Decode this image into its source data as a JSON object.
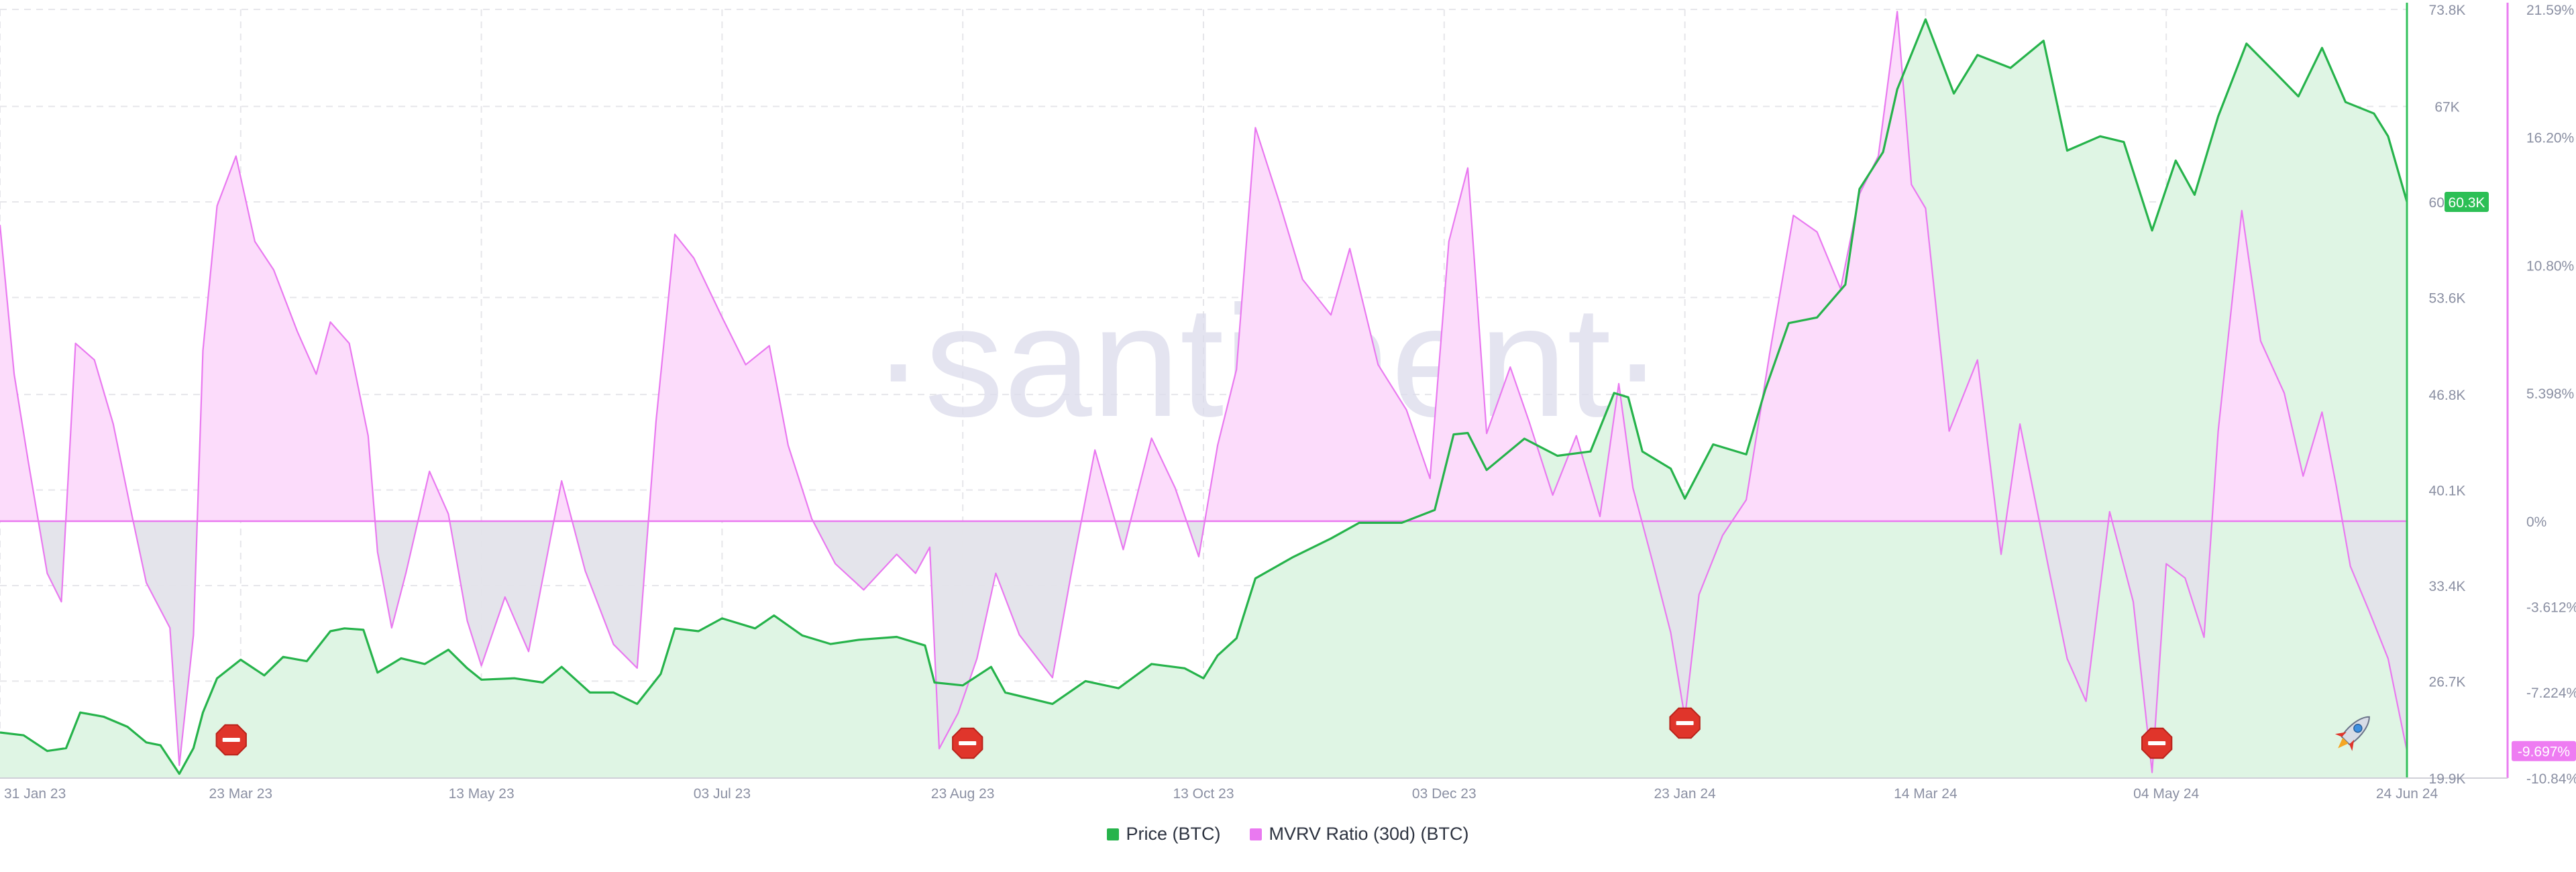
{
  "watermark": "·santiment·",
  "chart_data": {
    "type": "line",
    "x_range": [
      "2023-01-31",
      "2024-06-24"
    ],
    "x_tick_labels": [
      "31 Jan 23",
      "23 Mar 23",
      "13 May 23",
      "03 Jul 23",
      "23 Aug 23",
      "13 Oct 23",
      "03 Dec 23",
      "23 Jan 24",
      "14 Mar 24",
      "04 May 24",
      "24 Jun 24"
    ],
    "left_axis": {
      "name": "Price (BTC)",
      "ylim": [
        19900,
        73800
      ],
      "tick_values": [
        19900,
        26700,
        33400,
        40100,
        46800,
        53600,
        60300,
        67000,
        73800
      ],
      "tick_labels": [
        "19.9K",
        "26.7K",
        "33.4K",
        "40.1K",
        "46.8K",
        "53.6K",
        "60.3K",
        "67K",
        "73.8K"
      ],
      "last_value_label": "60.3K",
      "color": "#26b34b"
    },
    "right_axis": {
      "name": "MVRV Ratio (30d) (BTC)",
      "ylim": [
        -10.84,
        21.59
      ],
      "tick_values": [
        -10.84,
        -7.224,
        -3.612,
        0,
        5.398,
        10.8,
        16.2,
        21.59
      ],
      "tick_labels": [
        "-10.84%",
        "-7.224%",
        "-3.612%",
        "0%",
        "5.398%",
        "10.80%",
        "16.20%",
        "21.59%"
      ],
      "last_value_label": "-9.697%",
      "color": "#e979f0"
    },
    "grid": true,
    "legend_position": "bottom-center",
    "series": [
      {
        "name": "Price (BTC)",
        "axis": "left",
        "type": "area",
        "color": "#26b34b",
        "fill": "#dff5e4",
        "points": [
          [
            "2023-01-31",
            23100
          ],
          [
            "2023-02-05",
            22900
          ],
          [
            "2023-02-10",
            21800
          ],
          [
            "2023-02-14",
            22000
          ],
          [
            "2023-02-17",
            24500
          ],
          [
            "2023-02-22",
            24200
          ],
          [
            "2023-02-27",
            23500
          ],
          [
            "2023-03-03",
            22400
          ],
          [
            "2023-03-06",
            22200
          ],
          [
            "2023-03-10",
            20200
          ],
          [
            "2023-03-13",
            22000
          ],
          [
            "2023-03-15",
            24500
          ],
          [
            "2023-03-18",
            26900
          ],
          [
            "2023-03-23",
            28200
          ],
          [
            "2023-03-28",
            27100
          ],
          [
            "2023-04-01",
            28400
          ],
          [
            "2023-04-06",
            28100
          ],
          [
            "2023-04-11",
            30200
          ],
          [
            "2023-04-14",
            30400
          ],
          [
            "2023-04-18",
            30300
          ],
          [
            "2023-04-21",
            27300
          ],
          [
            "2023-04-26",
            28300
          ],
          [
            "2023-05-01",
            27900
          ],
          [
            "2023-05-06",
            28900
          ],
          [
            "2023-05-10",
            27600
          ],
          [
            "2023-05-13",
            26800
          ],
          [
            "2023-05-20",
            26900
          ],
          [
            "2023-05-26",
            26600
          ],
          [
            "2023-05-30",
            27700
          ],
          [
            "2023-06-05",
            25900
          ],
          [
            "2023-06-10",
            25900
          ],
          [
            "2023-06-15",
            25100
          ],
          [
            "2023-06-20",
            27200
          ],
          [
            "2023-06-23",
            30400
          ],
          [
            "2023-06-28",
            30200
          ],
          [
            "2023-07-03",
            31100
          ],
          [
            "2023-07-10",
            30400
          ],
          [
            "2023-07-14",
            31300
          ],
          [
            "2023-07-20",
            29900
          ],
          [
            "2023-07-26",
            29300
          ],
          [
            "2023-08-01",
            29600
          ],
          [
            "2023-08-09",
            29800
          ],
          [
            "2023-08-15",
            29200
          ],
          [
            "2023-08-17",
            26600
          ],
          [
            "2023-08-23",
            26400
          ],
          [
            "2023-08-29",
            27700
          ],
          [
            "2023-09-01",
            25900
          ],
          [
            "2023-09-11",
            25100
          ],
          [
            "2023-09-18",
            26700
          ],
          [
            "2023-09-25",
            26200
          ],
          [
            "2023-10-02",
            27900
          ],
          [
            "2023-10-09",
            27600
          ],
          [
            "2023-10-13",
            26900
          ],
          [
            "2023-10-16",
            28500
          ],
          [
            "2023-10-20",
            29700
          ],
          [
            "2023-10-24",
            33900
          ],
          [
            "2023-11-01",
            35400
          ],
          [
            "2023-11-09",
            36700
          ],
          [
            "2023-11-15",
            37800
          ],
          [
            "2023-11-24",
            37800
          ],
          [
            "2023-12-01",
            38700
          ],
          [
            "2023-12-05",
            44000
          ],
          [
            "2023-12-08",
            44100
          ],
          [
            "2023-12-12",
            41500
          ],
          [
            "2023-12-20",
            43700
          ],
          [
            "2023-12-27",
            42500
          ],
          [
            "2024-01-03",
            42800
          ],
          [
            "2024-01-08",
            46900
          ],
          [
            "2024-01-11",
            46600
          ],
          [
            "2024-01-14",
            42800
          ],
          [
            "2024-01-20",
            41600
          ],
          [
            "2024-01-23",
            39500
          ],
          [
            "2024-01-29",
            43300
          ],
          [
            "2024-02-05",
            42600
          ],
          [
            "2024-02-09",
            47100
          ],
          [
            "2024-02-14",
            51800
          ],
          [
            "2024-02-20",
            52200
          ],
          [
            "2024-02-26",
            54500
          ],
          [
            "2024-02-29",
            61200
          ],
          [
            "2024-03-05",
            63800
          ],
          [
            "2024-03-08",
            68200
          ],
          [
            "2024-03-14",
            73100
          ],
          [
            "2024-03-20",
            67900
          ],
          [
            "2024-03-25",
            70600
          ],
          [
            "2024-04-01",
            69700
          ],
          [
            "2024-04-08",
            71600
          ],
          [
            "2024-04-13",
            63900
          ],
          [
            "2024-04-20",
            64900
          ],
          [
            "2024-04-25",
            64500
          ],
          [
            "2024-05-01",
            58300
          ],
          [
            "2024-05-06",
            63200
          ],
          [
            "2024-05-10",
            60800
          ],
          [
            "2024-05-15",
            66300
          ],
          [
            "2024-05-21",
            71400
          ],
          [
            "2024-05-27",
            69400
          ],
          [
            "2024-06-01",
            67700
          ],
          [
            "2024-06-06",
            71100
          ],
          [
            "2024-06-11",
            67300
          ],
          [
            "2024-06-17",
            66500
          ],
          [
            "2024-06-20",
            64900
          ],
          [
            "2024-06-24",
            60300
          ]
        ]
      },
      {
        "name": "MVRV Ratio (30d) (BTC)",
        "axis": "right",
        "type": "area",
        "color": "#e979f0",
        "fill_positive": "#fcdcfb",
        "fill_negative": "#e3e3ea",
        "points": [
          [
            "2023-01-31",
            12.5
          ],
          [
            "2023-02-03",
            6.2
          ],
          [
            "2023-02-06",
            2.5
          ],
          [
            "2023-02-10",
            -2.2
          ],
          [
            "2023-02-13",
            -3.4
          ],
          [
            "2023-02-16",
            7.5
          ],
          [
            "2023-02-20",
            6.8
          ],
          [
            "2023-02-24",
            4.1
          ],
          [
            "2023-02-28",
            0.2
          ],
          [
            "2023-03-03",
            -2.6
          ],
          [
            "2023-03-08",
            -4.5
          ],
          [
            "2023-03-10",
            -10.3
          ],
          [
            "2023-03-13",
            -4.8
          ],
          [
            "2023-03-15",
            7.2
          ],
          [
            "2023-03-18",
            13.3
          ],
          [
            "2023-03-22",
            15.4
          ],
          [
            "2023-03-26",
            11.8
          ],
          [
            "2023-03-30",
            10.6
          ],
          [
            "2023-04-04",
            8.0
          ],
          [
            "2023-04-08",
            6.2
          ],
          [
            "2023-04-11",
            8.4
          ],
          [
            "2023-04-15",
            7.5
          ],
          [
            "2023-04-19",
            3.6
          ],
          [
            "2023-04-21",
            -1.3
          ],
          [
            "2023-04-24",
            -4.5
          ],
          [
            "2023-04-27",
            -2.2
          ],
          [
            "2023-05-02",
            2.1
          ],
          [
            "2023-05-06",
            0.3
          ],
          [
            "2023-05-10",
            -4.2
          ],
          [
            "2023-05-13",
            -6.1
          ],
          [
            "2023-05-18",
            -3.2
          ],
          [
            "2023-05-23",
            -5.5
          ],
          [
            "2023-05-30",
            1.7
          ],
          [
            "2023-06-04",
            -2.1
          ],
          [
            "2023-06-10",
            -5.2
          ],
          [
            "2023-06-15",
            -6.2
          ],
          [
            "2023-06-19",
            4.2
          ],
          [
            "2023-06-23",
            12.1
          ],
          [
            "2023-06-27",
            11.1
          ],
          [
            "2023-07-03",
            8.6
          ],
          [
            "2023-07-08",
            6.6
          ],
          [
            "2023-07-13",
            7.4
          ],
          [
            "2023-07-17",
            3.2
          ],
          [
            "2023-07-22",
            0.1
          ],
          [
            "2023-07-27",
            -1.8
          ],
          [
            "2023-08-02",
            -2.9
          ],
          [
            "2023-08-09",
            -1.4
          ],
          [
            "2023-08-13",
            -2.2
          ],
          [
            "2023-08-16",
            -1.1
          ],
          [
            "2023-08-18",
            -9.6
          ],
          [
            "2023-08-22",
            -8.1
          ],
          [
            "2023-08-26",
            -5.8
          ],
          [
            "2023-08-30",
            -2.2
          ],
          [
            "2023-09-04",
            -4.8
          ],
          [
            "2023-09-11",
            -6.6
          ],
          [
            "2023-09-15",
            -2.2
          ],
          [
            "2023-09-20",
            3.0
          ],
          [
            "2023-09-26",
            -1.2
          ],
          [
            "2023-10-02",
            3.5
          ],
          [
            "2023-10-07",
            1.4
          ],
          [
            "2023-10-12",
            -1.5
          ],
          [
            "2023-10-16",
            3.2
          ],
          [
            "2023-10-20",
            6.4
          ],
          [
            "2023-10-24",
            16.6
          ],
          [
            "2023-10-29",
            13.5
          ],
          [
            "2023-11-03",
            10.2
          ],
          [
            "2023-11-09",
            8.7
          ],
          [
            "2023-11-13",
            11.5
          ],
          [
            "2023-11-19",
            6.6
          ],
          [
            "2023-11-25",
            4.7
          ],
          [
            "2023-11-30",
            1.8
          ],
          [
            "2023-12-04",
            11.8
          ],
          [
            "2023-12-08",
            14.9
          ],
          [
            "2023-12-12",
            3.7
          ],
          [
            "2023-12-17",
            6.5
          ],
          [
            "2023-12-21",
            4.2
          ],
          [
            "2023-12-26",
            1.1
          ],
          [
            "2023-12-31",
            3.6
          ],
          [
            "2024-01-05",
            0.2
          ],
          [
            "2024-01-09",
            5.8
          ],
          [
            "2024-01-12",
            1.4
          ],
          [
            "2024-01-16",
            -1.6
          ],
          [
            "2024-01-20",
            -4.7
          ],
          [
            "2024-01-23",
            -8.3
          ],
          [
            "2024-01-26",
            -3.1
          ],
          [
            "2024-01-31",
            -0.6
          ],
          [
            "2024-02-05",
            0.9
          ],
          [
            "2024-02-10",
            7.1
          ],
          [
            "2024-02-15",
            12.9
          ],
          [
            "2024-02-20",
            12.2
          ],
          [
            "2024-02-25",
            9.8
          ],
          [
            "2024-02-29",
            13.8
          ],
          [
            "2024-03-04",
            15.4
          ],
          [
            "2024-03-08",
            21.5
          ],
          [
            "2024-03-11",
            14.2
          ],
          [
            "2024-03-14",
            13.2
          ],
          [
            "2024-03-19",
            3.8
          ],
          [
            "2024-03-25",
            6.8
          ],
          [
            "2024-03-30",
            -1.4
          ],
          [
            "2024-04-03",
            4.1
          ],
          [
            "2024-04-09",
            -1.9
          ],
          [
            "2024-04-13",
            -5.8
          ],
          [
            "2024-04-17",
            -7.6
          ],
          [
            "2024-04-22",
            0.4
          ],
          [
            "2024-04-27",
            -3.4
          ],
          [
            "2024-05-01",
            -10.6
          ],
          [
            "2024-05-04",
            -1.8
          ],
          [
            "2024-05-08",
            -2.4
          ],
          [
            "2024-05-12",
            -4.9
          ],
          [
            "2024-05-15",
            3.8
          ],
          [
            "2024-05-20",
            13.1
          ],
          [
            "2024-05-24",
            7.6
          ],
          [
            "2024-05-29",
            5.4
          ],
          [
            "2024-06-02",
            1.9
          ],
          [
            "2024-06-06",
            4.6
          ],
          [
            "2024-06-09",
            1.5
          ],
          [
            "2024-06-12",
            -1.9
          ],
          [
            "2024-06-16",
            -3.8
          ],
          [
            "2024-06-20",
            -5.8
          ],
          [
            "2024-06-24",
            -9.7
          ]
        ]
      }
    ],
    "annotations": [
      {
        "type": "stop-sign-icon",
        "date": "2023-03-21"
      },
      {
        "type": "stop-sign-icon",
        "date": "2023-08-24"
      },
      {
        "type": "stop-sign-icon",
        "date": "2024-01-23"
      },
      {
        "type": "stop-sign-icon",
        "date": "2024-05-02"
      },
      {
        "type": "rocket-icon",
        "date": "2024-06-13"
      }
    ]
  },
  "legend": [
    {
      "label": "Price (BTC)",
      "color": "#26b34b"
    },
    {
      "label": "MVRV Ratio (30d) (BTC)",
      "color": "#e979f0"
    }
  ]
}
